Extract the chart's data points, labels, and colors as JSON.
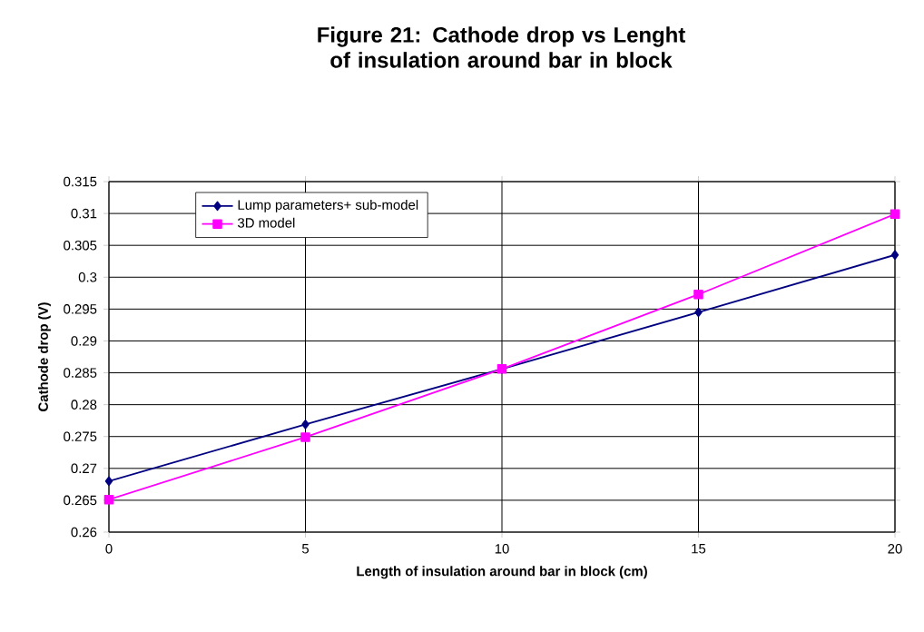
{
  "chart_data": {
    "type": "line",
    "title": "Figure 21: Cathode drop vs Lenght of insulation around bar in block",
    "xlabel": "Length of insulation around bar in block (cm)",
    "ylabel": "Cathode drop (V)",
    "x": [
      0,
      5,
      10,
      15,
      20
    ],
    "series": [
      {
        "name": "Lump parameters+ sub-model",
        "color": "#000080",
        "marker": "diamond",
        "values": [
          0.268,
          0.2769,
          0.2856,
          0.2945,
          0.3035
        ]
      },
      {
        "name": "3D model",
        "color": "#ff00ff",
        "marker": "square",
        "values": [
          0.2651,
          0.2749,
          0.2856,
          0.2973,
          0.3099
        ]
      }
    ],
    "xlim": [
      0,
      20
    ],
    "xticks": [
      0,
      5,
      10,
      15,
      20
    ],
    "ylim": [
      0.26,
      0.315
    ],
    "yticks": [
      0.26,
      0.265,
      0.27,
      0.275,
      0.28,
      0.285,
      0.29,
      0.295,
      0.3,
      0.305,
      0.31,
      0.315
    ],
    "grid": true,
    "legend": "top left",
    "line_style": "solid"
  }
}
